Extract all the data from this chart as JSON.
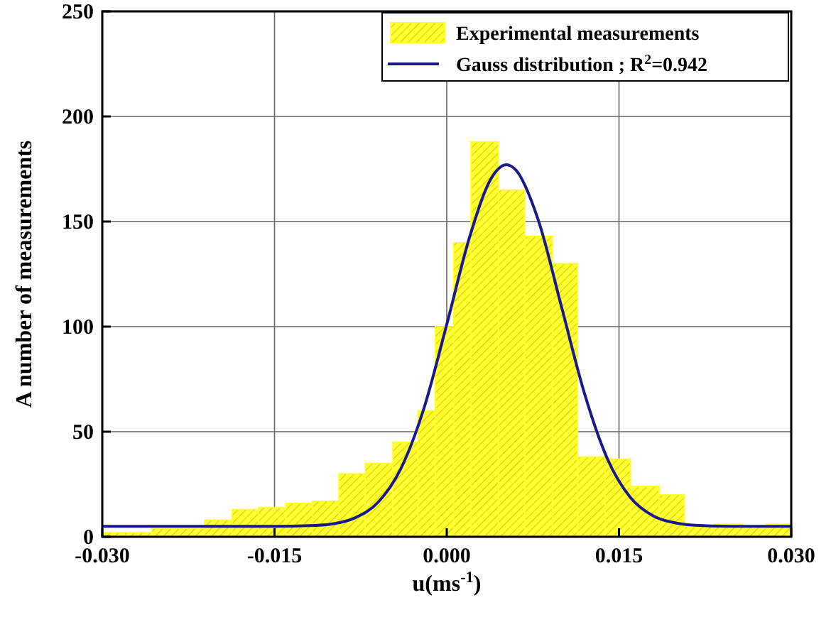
{
  "chart_data": {
    "type": "histogram",
    "xlabel": "u(ms$^{-1}$)",
    "ylabel": "A number of measurements",
    "bins": [
      -0.03,
      -0.0281,
      -0.0257,
      -0.0233,
      -0.0211,
      -0.0187,
      -0.0164,
      -0.014,
      -0.0117,
      -0.0094,
      -0.0071,
      -0.0047,
      -0.0025,
      -0.001,
      0.0006,
      0.0021,
      0.0045,
      0.0068,
      0.0092,
      0.0114,
      0.0138,
      0.016,
      0.0185,
      0.0207,
      0.0233,
      0.0258,
      0.0278,
      0.03
    ],
    "series": [
      {
        "name": "Experimental measurements",
        "color": "#ffff33",
        "values": [
          2,
          2,
          4,
          4,
          8,
          13,
          14,
          16,
          17,
          30,
          35,
          45,
          60,
          100,
          140,
          188,
          165,
          143,
          130,
          38,
          37,
          24,
          20,
          5,
          6,
          5,
          6
        ]
      },
      {
        "name": "Gauss distribution ; R$^{2}$=0.942",
        "type": "line",
        "color": "#1a1a8c",
        "x": [
          -0.03,
          -0.02,
          -0.015,
          -0.012,
          -0.01,
          -0.008,
          -0.006,
          -0.004,
          -0.002,
          0,
          0.002,
          0.004,
          0.0052,
          0.006,
          0.008,
          0.01,
          0.012,
          0.014,
          0.016,
          0.018,
          0.02,
          0.022,
          0.025,
          0.03
        ],
        "values": [
          5,
          5,
          5,
          5.3,
          6.1,
          9,
          16.3,
          32.4,
          60.9,
          101,
          142.8,
          171.7,
          177,
          174.6,
          150.2,
          109.3,
          68.1,
          37,
          18.7,
          9.9,
          6.5,
          5.4,
          5,
          5
        ]
      }
    ],
    "xlim": [
      -0.03,
      0.03
    ],
    "xticks": [
      {
        "value": -0.03,
        "label": "-0.030"
      },
      {
        "value": -0.015,
        "label": "-0.015"
      },
      {
        "value": 0,
        "label": "0.000"
      },
      {
        "value": 0.015,
        "label": "0.015"
      },
      {
        "value": 0.03,
        "label": "0.030"
      }
    ],
    "ylim": [
      0,
      250
    ],
    "yticks": [
      0,
      50,
      100,
      150,
      200,
      250
    ],
    "grid": true,
    "legend": "top right",
    "marker": "none",
    "line_style": "solid"
  }
}
